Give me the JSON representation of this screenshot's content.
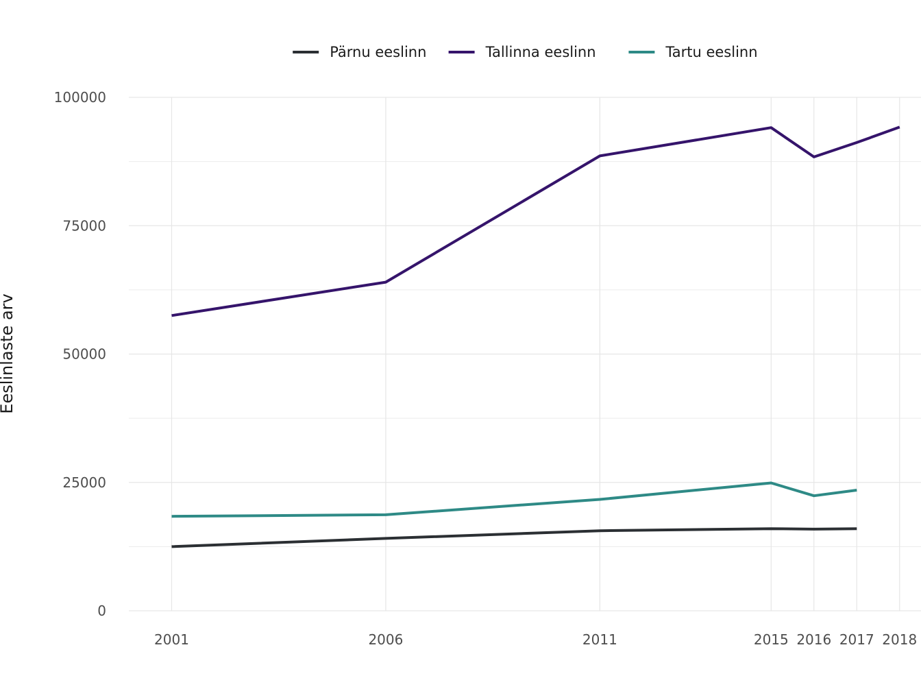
{
  "chart_data": {
    "type": "line",
    "title": "",
    "xlabel": "",
    "ylabel": "Eeslinlaste arv",
    "x": [
      2001,
      2006,
      2011,
      2015,
      2016,
      2017,
      2018
    ],
    "x_tick_labels": [
      "2001",
      "2006",
      "2011",
      "2015",
      "2016",
      "2017",
      "2018"
    ],
    "y_ticks": [
      0,
      25000,
      50000,
      75000,
      100000
    ],
    "y_tick_labels": [
      "0",
      "25000",
      "50000",
      "75000",
      "100000"
    ],
    "xlim": [
      2000,
      2018.5
    ],
    "ylim": [
      0,
      100000
    ],
    "grid": true,
    "legend_position": "top",
    "series": [
      {
        "name": "Pärnu eeslinn",
        "color": "#2b2f33",
        "values": [
          12500,
          14100,
          15600,
          16000,
          15900,
          16000,
          null
        ]
      },
      {
        "name": "Tallinna eeslinn",
        "color": "#35146b",
        "values": [
          57500,
          64000,
          88600,
          94100,
          88400,
          91200,
          94200
        ]
      },
      {
        "name": "Tartu eeslinn",
        "color": "#2e8a86",
        "values": [
          18400,
          18700,
          21700,
          24900,
          22400,
          23500,
          null
        ]
      }
    ]
  }
}
